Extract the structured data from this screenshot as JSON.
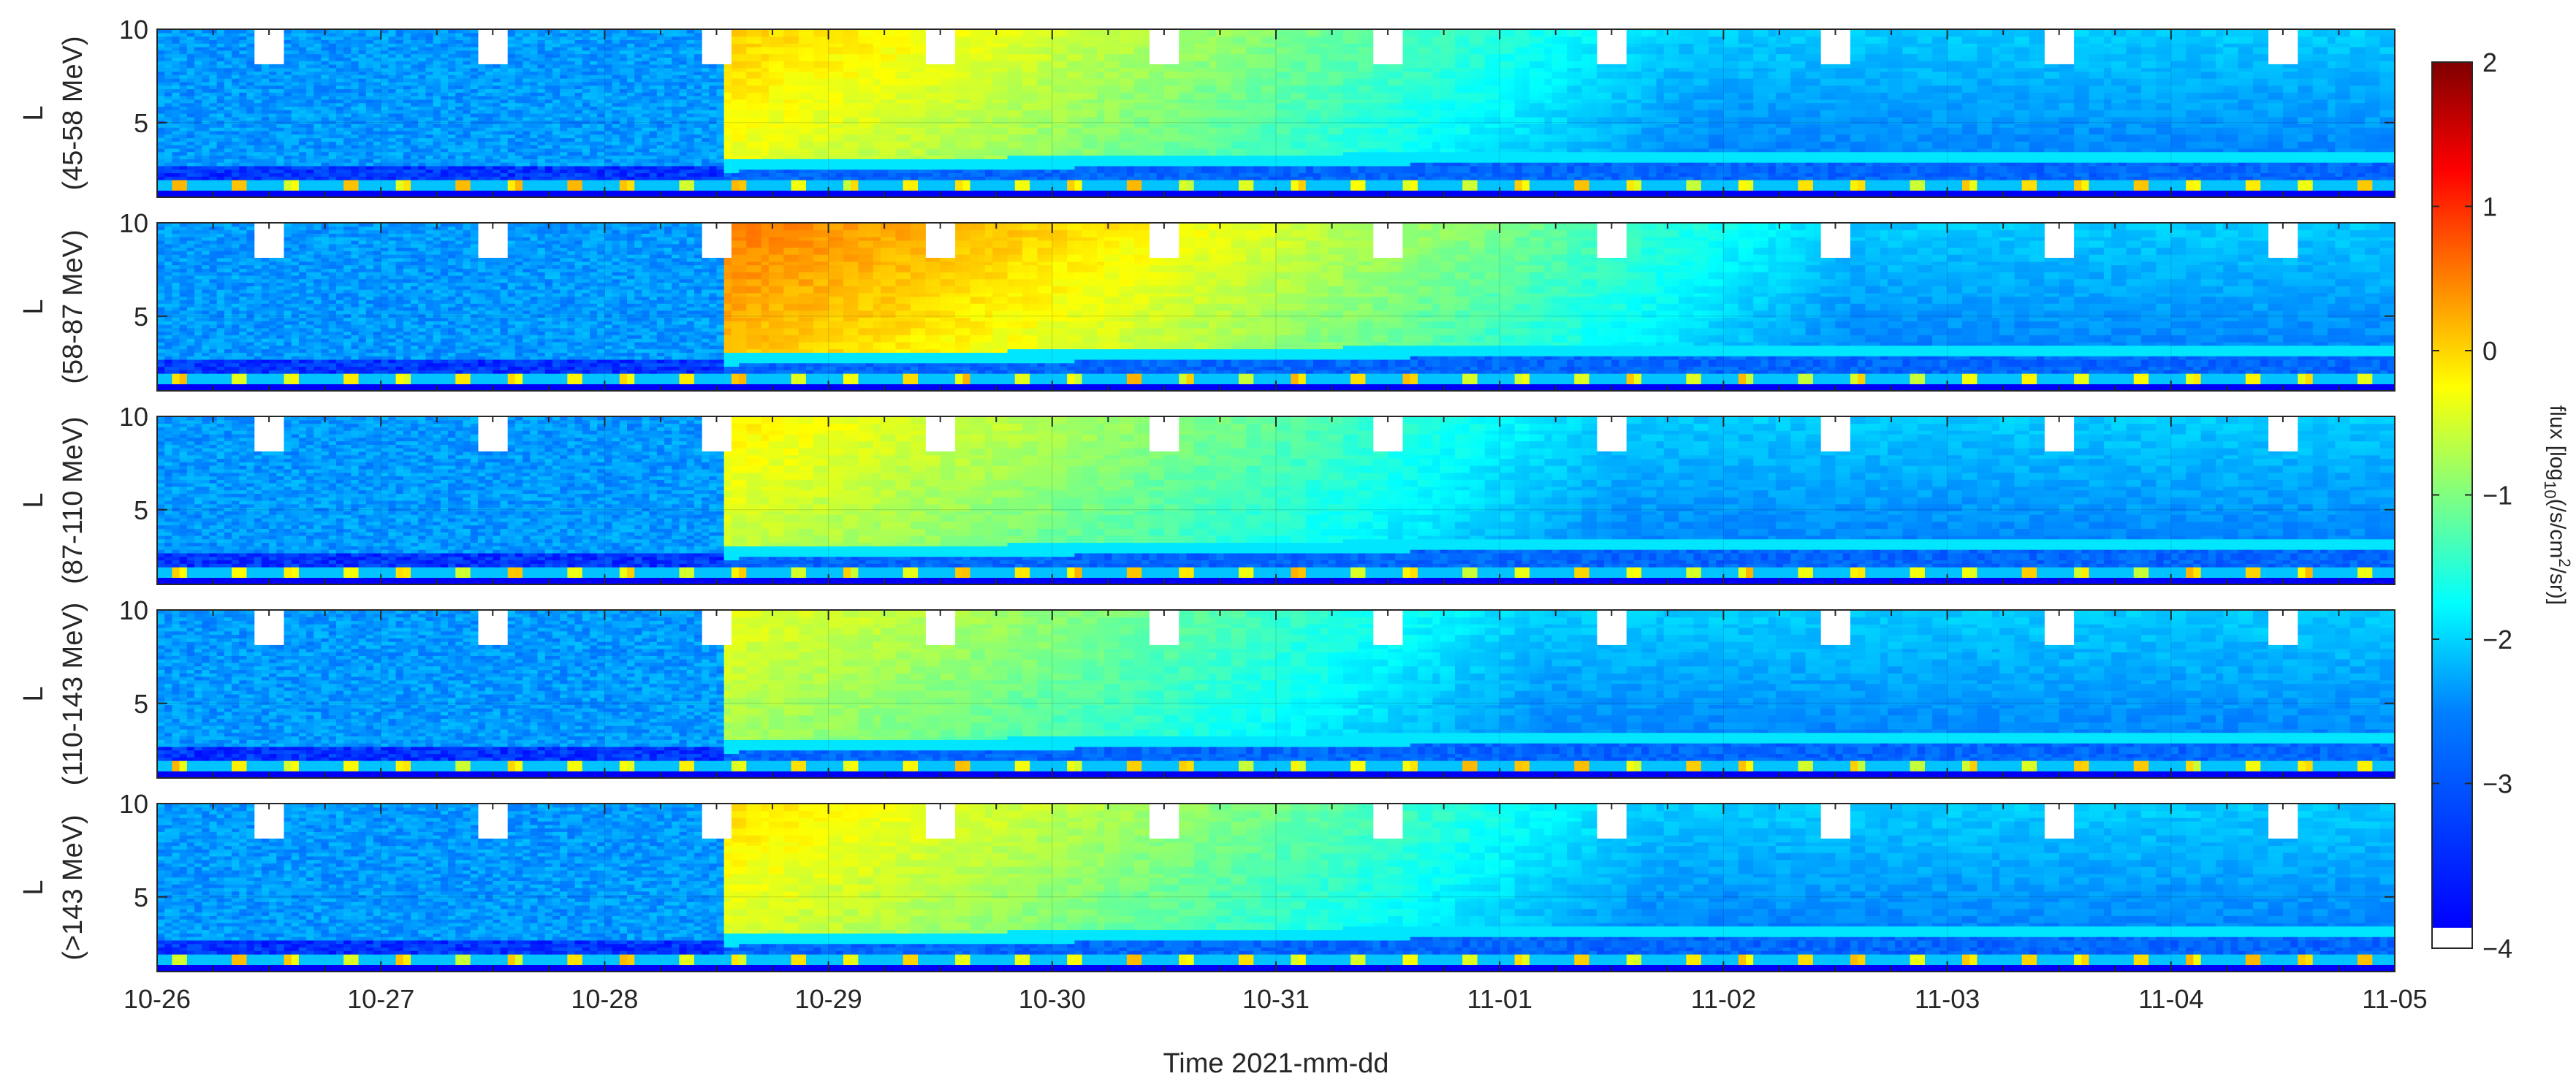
{
  "chart_data": {
    "type": "heatmap",
    "xlabel": "Time 2021-mm-dd",
    "xlim": [
      0,
      10
    ],
    "x_ticks": [
      {
        "value": 0,
        "label": "10-26"
      },
      {
        "value": 1,
        "label": "10-27"
      },
      {
        "value": 2,
        "label": "10-28"
      },
      {
        "value": 3,
        "label": "10-29"
      },
      {
        "value": 4,
        "label": "10-30"
      },
      {
        "value": 5,
        "label": "10-31"
      },
      {
        "value": 6,
        "label": "11-01"
      },
      {
        "value": 7,
        "label": "11-02"
      },
      {
        "value": 8,
        "label": "11-03"
      },
      {
        "value": 9,
        "label": "11-04"
      },
      {
        "value": 10,
        "label": "11-05"
      }
    ],
    "ylim": [
      1,
      10
    ],
    "y_ticks": [
      {
        "value": 5,
        "label": "5"
      },
      {
        "value": 10,
        "label": "10"
      }
    ],
    "panels": [
      {
        "ylabel": "(45-58 MeV)",
        "y_symbol": "L",
        "peak_flux_log10": -0.2
      },
      {
        "ylabel": "(58-87 MeV)",
        "y_symbol": "L",
        "peak_flux_log10": 0.3
      },
      {
        "ylabel": "(87-110 MeV)",
        "y_symbol": "L",
        "peak_flux_log10": -0.4
      },
      {
        "ylabel": "(110-143 MeV)",
        "y_symbol": "L",
        "peak_flux_log10": -0.6
      },
      {
        "ylabel": "(>143 MeV)",
        "y_symbol": "L",
        "peak_flux_log10": -0.3
      }
    ],
    "colorbar": {
      "label_prefix": "flux [log",
      "label_sub": "10",
      "label_mid": "(/s/cm",
      "label_sup": "2",
      "label_suffix": "/sr)]",
      "range": [
        -4,
        2
      ],
      "ticks": [
        {
          "value": 2,
          "label": "2"
        },
        {
          "value": 1,
          "label": "1"
        },
        {
          "value": 0,
          "label": "0"
        },
        {
          "value": -1,
          "label": "−1"
        },
        {
          "value": -2,
          "label": "−2"
        },
        {
          "value": -3,
          "label": "−3"
        },
        {
          "value": -4,
          "label": "−4"
        }
      ],
      "colormap": "jet"
    },
    "event_onset_day": 2.55,
    "data_gap_days": [
      0.5,
      1.5,
      2.5,
      3.5,
      4.5,
      5.5,
      6.5,
      7.5,
      8.5,
      9.5
    ]
  }
}
